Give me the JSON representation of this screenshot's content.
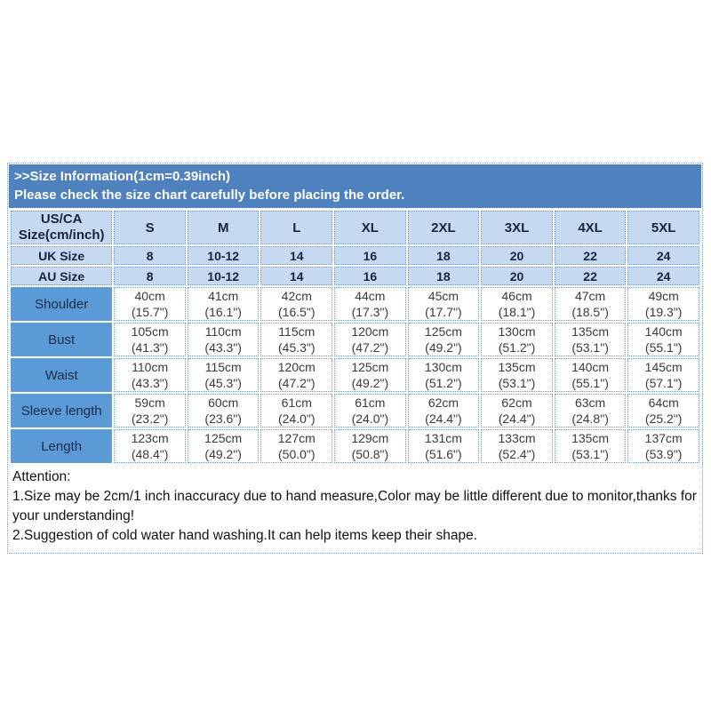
{
  "header": {
    "title": ">>Size Information(1cm=0.39inch)",
    "subtitle": "Please check the size chart carefully before placing the order."
  },
  "table": {
    "corner": {
      "line1": "US/CA",
      "line2": "Size(cm/inch)"
    },
    "sizes": [
      "S",
      "M",
      "L",
      "XL",
      "2XL",
      "3XL",
      "4XL",
      "5XL"
    ],
    "uk": {
      "label": "UK Size",
      "values": [
        "8",
        "10-12",
        "14",
        "16",
        "18",
        "20",
        "22",
        "24"
      ]
    },
    "au": {
      "label": "AU Size",
      "values": [
        "8",
        "10-12",
        "14",
        "16",
        "18",
        "20",
        "22",
        "24"
      ]
    },
    "measurements": [
      {
        "label": "Shoulder",
        "cm": [
          "40cm",
          "41cm",
          "42cm",
          "44cm",
          "45cm",
          "46cm",
          "47cm",
          "49cm"
        ],
        "inch": [
          "(15.7\")",
          "(16.1\")",
          "(16.5\")",
          "(17.3\")",
          "(17.7\")",
          "(18.1\")",
          "(18.5\")",
          "(19.3\")"
        ]
      },
      {
        "label": "Bust",
        "cm": [
          "105cm",
          "110cm",
          "115cm",
          "120cm",
          "125cm",
          "130cm",
          "135cm",
          "140cm"
        ],
        "inch": [
          "(41.3\")",
          "(43.3\")",
          "(45.3\")",
          "(47.2\")",
          "(49.2\")",
          "(51.2\")",
          "(53.1\")",
          "(55.1\")"
        ]
      },
      {
        "label": "Waist",
        "cm": [
          "110cm",
          "115cm",
          "120cm",
          "125cm",
          "130cm",
          "135cm",
          "140cm",
          "145cm"
        ],
        "inch": [
          "(43.3\")",
          "(45.3\")",
          "(47.2\")",
          "(49.2\")",
          "(51.2\")",
          "(53.1\")",
          "(55.1\")",
          "(57.1\")"
        ]
      },
      {
        "label": "Sleeve length",
        "cm": [
          "59cm",
          "60cm",
          "61cm",
          "61cm",
          "62cm",
          "62cm",
          "63cm",
          "64cm"
        ],
        "inch": [
          "(23.2\")",
          "(23.6\")",
          "(24.0\")",
          "(24.0\")",
          "(24.4\")",
          "(24.4\")",
          "(24.8\")",
          "(25.2\")"
        ]
      },
      {
        "label": "Length",
        "cm": [
          "123cm",
          "125cm",
          "127cm",
          "129cm",
          "131cm",
          "133cm",
          "135cm",
          "137cm"
        ],
        "inch": [
          "(48.4\")",
          "(49.2\")",
          "(50.0\")",
          "(50.8\")",
          "(51.6\")",
          "(52.4\")",
          "(53.1\")",
          "(53.9\")"
        ]
      }
    ]
  },
  "attention": {
    "title": "Attention:",
    "line1": "1.Size may be 2cm/1 inch inaccuracy due to hand measure,Color may be little different due to monitor,thanks for your understanding!",
    "line2": "2.Suggestion of cold water hand washing.It can help items keep their shape."
  },
  "colors": {
    "title_band": "#4e81bd",
    "header_fill": "#c5d9f1",
    "row_label_fill": "#5b9bd5",
    "grid_dots": "#6f9bd1",
    "header_text": "#16243f",
    "data_text": "#3a3a3a"
  }
}
